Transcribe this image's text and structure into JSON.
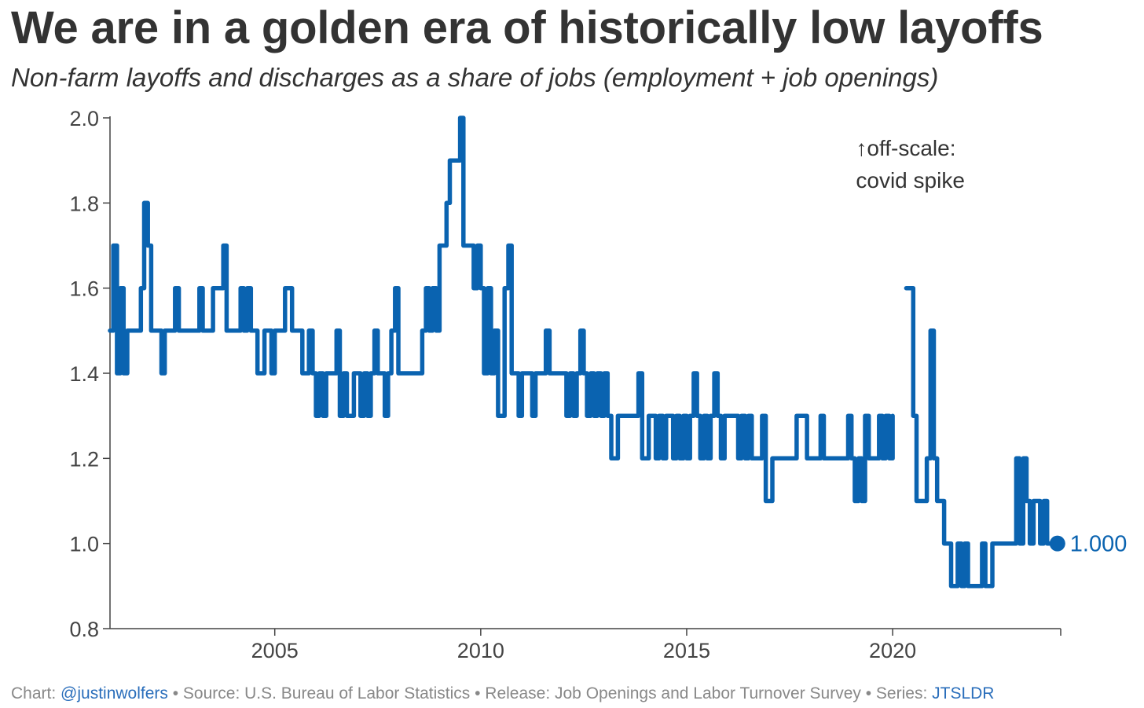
{
  "header": {
    "title": "We are in a golden era of historically low layoffs",
    "subtitle": "Non-farm layoffs and discharges as a share of jobs (employment + job openings)"
  },
  "footer": {
    "prefix": "Chart: ",
    "author": "@justinwolfers",
    "source": " • Source: U.S. Bureau of Labor Statistics • Release: Job Openings and Labor Turnover Survey • Series: ",
    "series_id": "JTSLDR"
  },
  "colors": {
    "line": "#0a63b0",
    "axis": "#444444",
    "link": "#2a6ebb"
  },
  "chart_data": {
    "type": "line",
    "title": "We are in a golden era of historically low layoffs",
    "subtitle": "Non-farm layoffs and discharges as a share of jobs (employment + job openings)",
    "xlabel": "",
    "ylabel": "",
    "xlim": [
      2001.0,
      2024.08
    ],
    "ylim": [
      0.8,
      2.0
    ],
    "x_ticks": [
      2005,
      2010,
      2015,
      2020
    ],
    "y_ticks": [
      0.8,
      1.0,
      1.2,
      1.4,
      1.6,
      1.8,
      2.0
    ],
    "y_tick_labels": [
      "0.8",
      "1.0",
      "1.2",
      "1.4",
      "1.6",
      "1.8",
      "2.0"
    ],
    "grid": false,
    "annotation": {
      "text_line1": "↑off-scale:",
      "text_line2": "covid spike",
      "x": 2019.3,
      "y": 1.93
    },
    "end_label": {
      "text": "1.000",
      "x": 2024.0,
      "y": 1.0
    },
    "series": [
      {
        "points": [
          [
            2001.0,
            1.5
          ],
          [
            2001.08,
            1.7
          ],
          [
            2001.17,
            1.4
          ],
          [
            2001.25,
            1.6
          ],
          [
            2001.33,
            1.4
          ],
          [
            2001.42,
            1.5
          ],
          [
            2001.5,
            1.5
          ],
          [
            2001.58,
            1.5
          ],
          [
            2001.67,
            1.5
          ],
          [
            2001.75,
            1.6
          ],
          [
            2001.83,
            1.8
          ],
          [
            2001.92,
            1.7
          ],
          [
            2002.0,
            1.5
          ],
          [
            2002.08,
            1.5
          ],
          [
            2002.17,
            1.5
          ],
          [
            2002.25,
            1.4
          ],
          [
            2002.33,
            1.5
          ],
          [
            2002.42,
            1.5
          ],
          [
            2002.5,
            1.5
          ],
          [
            2002.58,
            1.6
          ],
          [
            2002.67,
            1.5
          ],
          [
            2002.75,
            1.5
          ],
          [
            2002.83,
            1.5
          ],
          [
            2002.92,
            1.5
          ],
          [
            2003.0,
            1.5
          ],
          [
            2003.08,
            1.5
          ],
          [
            2003.17,
            1.6
          ],
          [
            2003.25,
            1.5
          ],
          [
            2003.33,
            1.5
          ],
          [
            2003.42,
            1.5
          ],
          [
            2003.5,
            1.6
          ],
          [
            2003.58,
            1.6
          ],
          [
            2003.67,
            1.6
          ],
          [
            2003.75,
            1.7
          ],
          [
            2003.83,
            1.5
          ],
          [
            2003.92,
            1.5
          ],
          [
            2004.0,
            1.5
          ],
          [
            2004.08,
            1.5
          ],
          [
            2004.17,
            1.6
          ],
          [
            2004.25,
            1.5
          ],
          [
            2004.33,
            1.6
          ],
          [
            2004.42,
            1.5
          ],
          [
            2004.5,
            1.5
          ],
          [
            2004.58,
            1.4
          ],
          [
            2004.67,
            1.4
          ],
          [
            2004.75,
            1.5
          ],
          [
            2004.83,
            1.5
          ],
          [
            2004.92,
            1.4
          ],
          [
            2005.0,
            1.5
          ],
          [
            2005.08,
            1.5
          ],
          [
            2005.17,
            1.5
          ],
          [
            2005.25,
            1.6
          ],
          [
            2005.33,
            1.6
          ],
          [
            2005.42,
            1.5
          ],
          [
            2005.5,
            1.5
          ],
          [
            2005.58,
            1.5
          ],
          [
            2005.67,
            1.4
          ],
          [
            2005.75,
            1.4
          ],
          [
            2005.83,
            1.5
          ],
          [
            2005.92,
            1.4
          ],
          [
            2006.0,
            1.3
          ],
          [
            2006.08,
            1.4
          ],
          [
            2006.17,
            1.3
          ],
          [
            2006.25,
            1.4
          ],
          [
            2006.33,
            1.4
          ],
          [
            2006.42,
            1.4
          ],
          [
            2006.5,
            1.5
          ],
          [
            2006.58,
            1.3
          ],
          [
            2006.67,
            1.4
          ],
          [
            2006.75,
            1.3
          ],
          [
            2006.83,
            1.3
          ],
          [
            2006.92,
            1.4
          ],
          [
            2007.0,
            1.4
          ],
          [
            2007.08,
            1.3
          ],
          [
            2007.17,
            1.4
          ],
          [
            2007.25,
            1.3
          ],
          [
            2007.33,
            1.4
          ],
          [
            2007.42,
            1.5
          ],
          [
            2007.5,
            1.4
          ],
          [
            2007.58,
            1.4
          ],
          [
            2007.67,
            1.3
          ],
          [
            2007.75,
            1.4
          ],
          [
            2007.83,
            1.5
          ],
          [
            2007.92,
            1.6
          ],
          [
            2008.0,
            1.4
          ],
          [
            2008.08,
            1.4
          ],
          [
            2008.17,
            1.4
          ],
          [
            2008.25,
            1.4
          ],
          [
            2008.33,
            1.4
          ],
          [
            2008.42,
            1.4
          ],
          [
            2008.5,
            1.4
          ],
          [
            2008.58,
            1.5
          ],
          [
            2008.67,
            1.6
          ],
          [
            2008.75,
            1.5
          ],
          [
            2008.83,
            1.6
          ],
          [
            2008.92,
            1.5
          ],
          [
            2009.0,
            1.7
          ],
          [
            2009.08,
            1.7
          ],
          [
            2009.17,
            1.8
          ],
          [
            2009.25,
            1.9
          ],
          [
            2009.33,
            1.9
          ],
          [
            2009.42,
            1.9
          ],
          [
            2009.5,
            2.0
          ],
          [
            2009.58,
            1.7
          ],
          [
            2009.67,
            1.7
          ],
          [
            2009.75,
            1.7
          ],
          [
            2009.83,
            1.6
          ],
          [
            2009.92,
            1.7
          ],
          [
            2010.0,
            1.6
          ],
          [
            2010.08,
            1.4
          ],
          [
            2010.17,
            1.6
          ],
          [
            2010.25,
            1.4
          ],
          [
            2010.33,
            1.5
          ],
          [
            2010.42,
            1.3
          ],
          [
            2010.5,
            1.3
          ],
          [
            2010.58,
            1.6
          ],
          [
            2010.67,
            1.7
          ],
          [
            2010.75,
            1.4
          ],
          [
            2010.83,
            1.4
          ],
          [
            2010.92,
            1.3
          ],
          [
            2011.0,
            1.4
          ],
          [
            2011.08,
            1.4
          ],
          [
            2011.17,
            1.4
          ],
          [
            2011.25,
            1.3
          ],
          [
            2011.33,
            1.4
          ],
          [
            2011.42,
            1.4
          ],
          [
            2011.5,
            1.4
          ],
          [
            2011.58,
            1.5
          ],
          [
            2011.67,
            1.4
          ],
          [
            2011.75,
            1.4
          ],
          [
            2011.83,
            1.4
          ],
          [
            2011.92,
            1.4
          ],
          [
            2012.0,
            1.4
          ],
          [
            2012.08,
            1.3
          ],
          [
            2012.17,
            1.4
          ],
          [
            2012.25,
            1.3
          ],
          [
            2012.33,
            1.4
          ],
          [
            2012.42,
            1.5
          ],
          [
            2012.5,
            1.4
          ],
          [
            2012.58,
            1.3
          ],
          [
            2012.67,
            1.4
          ],
          [
            2012.75,
            1.3
          ],
          [
            2012.83,
            1.4
          ],
          [
            2012.92,
            1.3
          ],
          [
            2013.0,
            1.4
          ],
          [
            2013.08,
            1.3
          ],
          [
            2013.17,
            1.2
          ],
          [
            2013.25,
            1.2
          ],
          [
            2013.33,
            1.3
          ],
          [
            2013.42,
            1.3
          ],
          [
            2013.5,
            1.3
          ],
          [
            2013.58,
            1.3
          ],
          [
            2013.67,
            1.3
          ],
          [
            2013.75,
            1.3
          ],
          [
            2013.83,
            1.4
          ],
          [
            2013.92,
            1.2
          ],
          [
            2014.0,
            1.2
          ],
          [
            2014.08,
            1.3
          ],
          [
            2014.17,
            1.3
          ],
          [
            2014.25,
            1.2
          ],
          [
            2014.33,
            1.3
          ],
          [
            2014.42,
            1.2
          ],
          [
            2014.5,
            1.3
          ],
          [
            2014.58,
            1.3
          ],
          [
            2014.67,
            1.2
          ],
          [
            2014.75,
            1.3
          ],
          [
            2014.83,
            1.2
          ],
          [
            2014.92,
            1.3
          ],
          [
            2015.0,
            1.2
          ],
          [
            2015.08,
            1.3
          ],
          [
            2015.17,
            1.4
          ],
          [
            2015.25,
            1.3
          ],
          [
            2015.33,
            1.2
          ],
          [
            2015.42,
            1.3
          ],
          [
            2015.5,
            1.2
          ],
          [
            2015.58,
            1.3
          ],
          [
            2015.67,
            1.4
          ],
          [
            2015.75,
            1.3
          ],
          [
            2015.83,
            1.2
          ],
          [
            2015.92,
            1.3
          ],
          [
            2016.0,
            1.3
          ],
          [
            2016.08,
            1.3
          ],
          [
            2016.17,
            1.3
          ],
          [
            2016.25,
            1.2
          ],
          [
            2016.33,
            1.3
          ],
          [
            2016.42,
            1.2
          ],
          [
            2016.5,
            1.3
          ],
          [
            2016.58,
            1.2
          ],
          [
            2016.67,
            1.2
          ],
          [
            2016.75,
            1.2
          ],
          [
            2016.83,
            1.3
          ],
          [
            2016.92,
            1.1
          ],
          [
            2017.0,
            1.1
          ],
          [
            2017.08,
            1.2
          ],
          [
            2017.17,
            1.2
          ],
          [
            2017.25,
            1.2
          ],
          [
            2017.33,
            1.2
          ],
          [
            2017.42,
            1.2
          ],
          [
            2017.5,
            1.2
          ],
          [
            2017.58,
            1.2
          ],
          [
            2017.67,
            1.3
          ],
          [
            2017.75,
            1.3
          ],
          [
            2017.83,
            1.3
          ],
          [
            2017.92,
            1.2
          ],
          [
            2018.0,
            1.2
          ],
          [
            2018.08,
            1.2
          ],
          [
            2018.17,
            1.2
          ],
          [
            2018.25,
            1.3
          ],
          [
            2018.33,
            1.2
          ],
          [
            2018.42,
            1.2
          ],
          [
            2018.5,
            1.2
          ],
          [
            2018.58,
            1.2
          ],
          [
            2018.67,
            1.2
          ],
          [
            2018.75,
            1.2
          ],
          [
            2018.83,
            1.2
          ],
          [
            2018.92,
            1.3
          ],
          [
            2019.0,
            1.2
          ],
          [
            2019.08,
            1.1
          ],
          [
            2019.17,
            1.2
          ],
          [
            2019.25,
            1.1
          ],
          [
            2019.33,
            1.3
          ],
          [
            2019.42,
            1.2
          ],
          [
            2019.5,
            1.2
          ],
          [
            2019.58,
            1.2
          ],
          [
            2019.67,
            1.3
          ],
          [
            2019.75,
            1.2
          ],
          [
            2019.83,
            1.3
          ],
          [
            2019.92,
            1.2
          ],
          [
            2020.0,
            1.3
          ],
          null,
          [
            2020.33,
            1.6
          ],
          [
            2020.42,
            1.6
          ],
          [
            2020.5,
            1.3
          ],
          [
            2020.58,
            1.1
          ],
          [
            2020.67,
            1.1
          ],
          [
            2020.75,
            1.1
          ],
          [
            2020.83,
            1.2
          ],
          [
            2020.92,
            1.5
          ],
          [
            2021.0,
            1.2
          ],
          [
            2021.08,
            1.1
          ],
          [
            2021.17,
            1.1
          ],
          [
            2021.25,
            1.0
          ],
          [
            2021.33,
            1.0
          ],
          [
            2021.42,
            0.9
          ],
          [
            2021.5,
            0.9
          ],
          [
            2021.58,
            1.0
          ],
          [
            2021.67,
            0.9
          ],
          [
            2021.75,
            1.0
          ],
          [
            2021.83,
            0.9
          ],
          [
            2021.92,
            0.9
          ],
          [
            2022.0,
            0.9
          ],
          [
            2022.08,
            0.9
          ],
          [
            2022.17,
            1.0
          ],
          [
            2022.25,
            0.9
          ],
          [
            2022.33,
            0.9
          ],
          [
            2022.42,
            1.0
          ],
          [
            2022.5,
            1.0
          ],
          [
            2022.58,
            1.0
          ],
          [
            2022.67,
            1.0
          ],
          [
            2022.75,
            1.0
          ],
          [
            2022.83,
            1.0
          ],
          [
            2022.92,
            1.0
          ],
          [
            2023.0,
            1.2
          ],
          [
            2023.08,
            1.0
          ],
          [
            2023.17,
            1.2
          ],
          [
            2023.25,
            1.1
          ],
          [
            2023.33,
            1.0
          ],
          [
            2023.42,
            1.1
          ],
          [
            2023.5,
            1.1
          ],
          [
            2023.58,
            1.0
          ],
          [
            2023.67,
            1.1
          ],
          [
            2023.75,
            1.0
          ],
          [
            2023.83,
            1.0
          ],
          [
            2023.92,
            1.0
          ],
          [
            2024.0,
            1.0
          ]
        ]
      }
    ]
  }
}
